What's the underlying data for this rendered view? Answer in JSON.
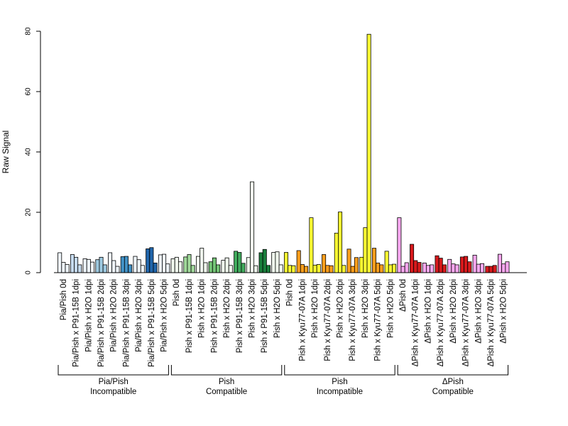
{
  "chart_data": {
    "type": "bar",
    "ylabel": "Raw Signal",
    "xlabel": "",
    "ylim": [
      0,
      80
    ],
    "yticks": [
      0,
      20,
      40,
      60,
      80
    ],
    "grid": false,
    "legend": "none",
    "categories": [
      "Pia/Pish 0d",
      "Pia/Pish x P91-15B 1dpi",
      "Pia/Pish x H2O 1dpi",
      "Pia/Pish x P91-15B 2dpi",
      "Pia/Pish x H2O 2dpi",
      "Pia/Pish x P91-15B 3dpi",
      "Pia/Pish x H2O 3dpi",
      "Pia/Pish x P91-15B 5dpi",
      "Pia/Pish x H2O 5dpi",
      "Pish 0d",
      "Pish x P91-15B 1dpi",
      "Pish x H2O 1dpi",
      "Pish x P91-15B 2dpi",
      "Pish x H2O 2dpi",
      "Pish x P91-15B 3dpi",
      "Pish x H2O 3dpi",
      "Pish x P91-15B 5dpi",
      "Pish x H2O 5dpi",
      "Pish 0d",
      "Pish x Kyu77-07A 1dpi",
      "Pish x H2O 1dpi",
      "Pish x Kyu77-07A 2dpi",
      "Pish x H2O 2dpi",
      "Pish x Kyu77-07A 3dpi",
      "Pish x H2O 3dpi",
      "Pish x Kyu77-07A 5dpi",
      "Pish x H2O 5dpi",
      "ΔPish 0d",
      "ΔPish x Kyu77-07A 1dpi",
      "ΔPish x H2O 1dpi",
      "ΔPish x Kyu77-07A 2dpi",
      "ΔPish x H2O 2dpi",
      "ΔPish x Kyu77-07A 3dpi",
      "ΔPish x H2O 3dpi",
      "ΔPish x Kyu77-07A 5dpi",
      "ΔPish x H2O 5dpi"
    ],
    "values": [
      [
        6.6,
        3.4,
        2.7
      ],
      [
        6.0,
        5.1,
        2.6
      ],
      [
        4.6,
        4.4,
        3.5
      ],
      [
        4.3,
        5.1,
        2.6
      ],
      [
        6.6,
        4.0,
        2.1
      ],
      [
        5.3,
        5.4,
        2.6
      ],
      [
        5.4,
        4.3,
        2.4
      ],
      [
        7.9,
        8.3,
        3.2
      ],
      [
        5.9,
        6.1,
        2.9
      ],
      [
        4.6,
        5.1,
        3.6
      ],
      [
        5.2,
        6.0,
        2.4
      ],
      [
        5.4,
        8.1,
        3.3
      ],
      [
        3.6,
        4.9,
        2.6
      ],
      [
        4.1,
        4.9,
        2.4
      ],
      [
        7.1,
        6.7,
        3.1
      ],
      [
        5.0,
        30.1,
        2.3
      ],
      [
        6.6,
        7.7,
        2.4
      ],
      [
        6.7,
        6.9,
        2.6
      ],
      [
        6.7,
        2.4,
        2.3
      ],
      [
        7.3,
        2.7,
        2.1
      ],
      [
        18.2,
        2.5,
        2.7
      ],
      [
        6.0,
        2.4,
        2.3
      ],
      [
        13.1,
        20.1,
        2.4
      ],
      [
        7.8,
        2.1,
        5.0
      ],
      [
        5.1,
        14.9,
        79.0
      ],
      [
        8.1,
        3.2,
        2.6
      ],
      [
        7.1,
        2.6,
        2.8
      ],
      [
        18.2,
        2.1,
        3.3
      ],
      [
        9.4,
        4.0,
        3.4
      ],
      [
        3.2,
        2.4,
        2.6
      ],
      [
        5.6,
        4.8,
        2.6
      ],
      [
        4.4,
        2.9,
        2.6
      ],
      [
        5.2,
        5.4,
        3.6
      ],
      [
        5.8,
        2.8,
        3.0
      ],
      [
        2.1,
        2.1,
        2.4
      ],
      [
        6.1,
        2.9,
        3.6
      ]
    ],
    "colors": [
      "#eef5fb",
      "#c6dbef",
      "#eef5fb",
      "#9ecae1",
      "#eef5fb",
      "#4292c6",
      "#eef5fb",
      "#2166ac",
      "#eef5fb",
      "#f1f9ee",
      "#a1d99b",
      "#f1f9ee",
      "#74c476",
      "#f1f9ee",
      "#41ab5d",
      "#f1f9ee",
      "#1a7f3c",
      "#f1f9ee",
      "#ffff33",
      "#ff9f1c",
      "#ffff33",
      "#ff9f1c",
      "#ffff33",
      "#ff9f1c",
      "#ffff33",
      "#ff9f1c",
      "#ffff33",
      "#f8a8f0",
      "#d7191c",
      "#f8a8f0",
      "#d7191c",
      "#f8a8f0",
      "#d7191c",
      "#f8a8f0",
      "#d7191c",
      "#f8a8f0"
    ],
    "groups": [
      {
        "line1": "Pia/Pish",
        "line2": "Incompatible",
        "start": 0,
        "end": 8
      },
      {
        "line1": "Pish",
        "line2": "Compatible",
        "start": 9,
        "end": 17
      },
      {
        "line1": "Pish",
        "line2": "Incompatible",
        "start": 18,
        "end": 26
      },
      {
        "line1": "ΔPish",
        "line2": "Compatible",
        "start": 27,
        "end": 35
      }
    ]
  }
}
